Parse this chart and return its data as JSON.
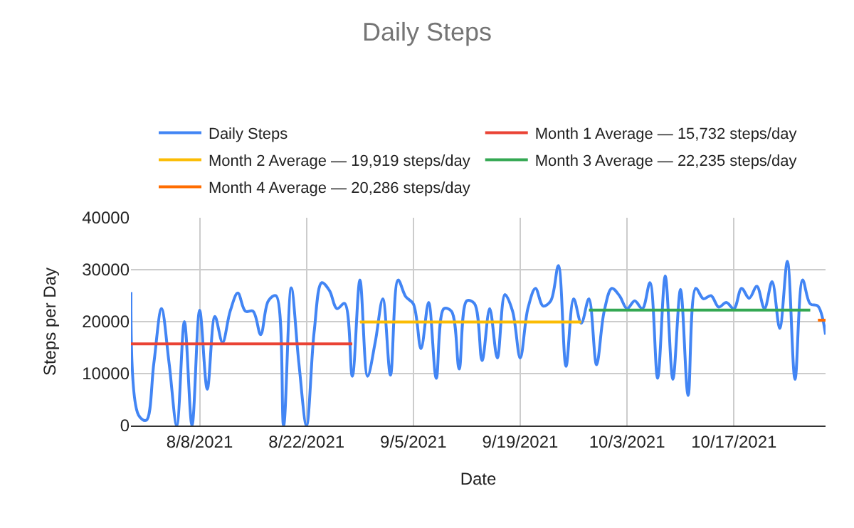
{
  "chart_data": {
    "type": "line",
    "title": "Daily Steps",
    "xlabel": "Date",
    "ylabel": "Steps per Day",
    "x": [
      "2021-07-30",
      "2021-07-31",
      "2021-08-01",
      "2021-08-02",
      "2021-08-03",
      "2021-08-04",
      "2021-08-05",
      "2021-08-06",
      "2021-08-07",
      "2021-08-08",
      "2021-08-09",
      "2021-08-10",
      "2021-08-11",
      "2021-08-12",
      "2021-08-13",
      "2021-08-14",
      "2021-08-15",
      "2021-08-16",
      "2021-08-17",
      "2021-08-18",
      "2021-08-19",
      "2021-08-20",
      "2021-08-21",
      "2021-08-22",
      "2021-08-23",
      "2021-08-24",
      "2021-08-25",
      "2021-08-26",
      "2021-08-27",
      "2021-08-28",
      "2021-08-29",
      "2021-08-30",
      "2021-08-31",
      "2021-09-01",
      "2021-09-02",
      "2021-09-03",
      "2021-09-04",
      "2021-09-05",
      "2021-09-06",
      "2021-09-07",
      "2021-09-08",
      "2021-09-09",
      "2021-09-10",
      "2021-09-11",
      "2021-09-12",
      "2021-09-13",
      "2021-09-14",
      "2021-09-15",
      "2021-09-16",
      "2021-09-17",
      "2021-09-18",
      "2021-09-19",
      "2021-09-20",
      "2021-09-21",
      "2021-09-22",
      "2021-09-23",
      "2021-09-24",
      "2021-09-25",
      "2021-09-26",
      "2021-09-27",
      "2021-09-28",
      "2021-09-29",
      "2021-09-30",
      "2021-10-01",
      "2021-10-02",
      "2021-10-03",
      "2021-10-04",
      "2021-10-05",
      "2021-10-06",
      "2021-10-07",
      "2021-10-08",
      "2021-10-09",
      "2021-10-10",
      "2021-10-11",
      "2021-10-12",
      "2021-10-13",
      "2021-10-14",
      "2021-10-15",
      "2021-10-16",
      "2021-10-17",
      "2021-10-18",
      "2021-10-19",
      "2021-10-20",
      "2021-10-21",
      "2021-10-22",
      "2021-10-23",
      "2021-10-24",
      "2021-10-25",
      "2021-10-26",
      "2021-10-27",
      "2021-10-28",
      "2021-10-29"
    ],
    "series": [
      {
        "name": "Daily Steps",
        "color": "#4285f4",
        "values": [
          25700,
          2000,
          1000,
          12000,
          22500,
          12000,
          0,
          20000,
          0,
          22200,
          7000,
          21000,
          16000,
          22000,
          25500,
          22000,
          22000,
          17500,
          24000,
          25000,
          0,
          26500,
          12000,
          0,
          18000,
          27500,
          26000,
          22500,
          23500,
          9500,
          28000,
          9500,
          16000,
          24400,
          9700,
          28000,
          24800,
          23400,
          14800,
          23700,
          9100,
          22500,
          22000,
          10900,
          24000,
          23500,
          12500,
          22500,
          13000,
          25200,
          22000,
          13000,
          22500,
          26400,
          23000,
          24000,
          30800,
          11400,
          24400,
          19700,
          24400,
          11700,
          22000,
          26400,
          25000,
          22500,
          24000,
          22500,
          27500,
          9100,
          28800,
          8900,
          26200,
          5800,
          26400,
          24400,
          25000,
          22800,
          23700,
          22500,
          26400,
          24500,
          26800,
          22500,
          27700,
          18700,
          31600,
          8900,
          28000,
          23400,
          23000,
          17500
        ]
      },
      {
        "name": "Month 1 Average — 15,732 steps/day",
        "color": "#ea4335",
        "x": [
          "2021-07-30",
          "2021-08-28"
        ],
        "values": [
          15732,
          15732
        ]
      },
      {
        "name": "Month 2 Average — 19,919 steps/day",
        "color": "#fbbc04",
        "x": [
          "2021-08-29",
          "2021-09-27"
        ],
        "values": [
          19919,
          19919
        ]
      },
      {
        "name": "Month 3 Average — 22,235 steps/day",
        "color": "#34a853",
        "x": [
          "2021-09-28",
          "2021-10-27"
        ],
        "values": [
          22235,
          22235
        ]
      },
      {
        "name": "Month 4 Average — 20,286 steps/day",
        "color": "#ff6d01",
        "x": [
          "2021-10-28",
          "2021-10-29"
        ],
        "values": [
          20286,
          20286
        ]
      }
    ],
    "xlim": [
      "2021-07-30",
      "2021-10-29"
    ],
    "xticks": [
      {
        "value": "2021-08-08",
        "label": "8/8/2021"
      },
      {
        "value": "2021-08-22",
        "label": "8/22/2021"
      },
      {
        "value": "2021-09-05",
        "label": "9/5/2021"
      },
      {
        "value": "2021-09-19",
        "label": "9/19/2021"
      },
      {
        "value": "2021-10-03",
        "label": "10/3/2021"
      },
      {
        "value": "2021-10-17",
        "label": "10/17/2021"
      }
    ],
    "ylim": [
      0,
      40000
    ],
    "yticks": [
      0,
      10000,
      20000,
      30000,
      40000
    ],
    "grid": true,
    "legend": "top",
    "marker": "none",
    "line_style": "solid"
  }
}
